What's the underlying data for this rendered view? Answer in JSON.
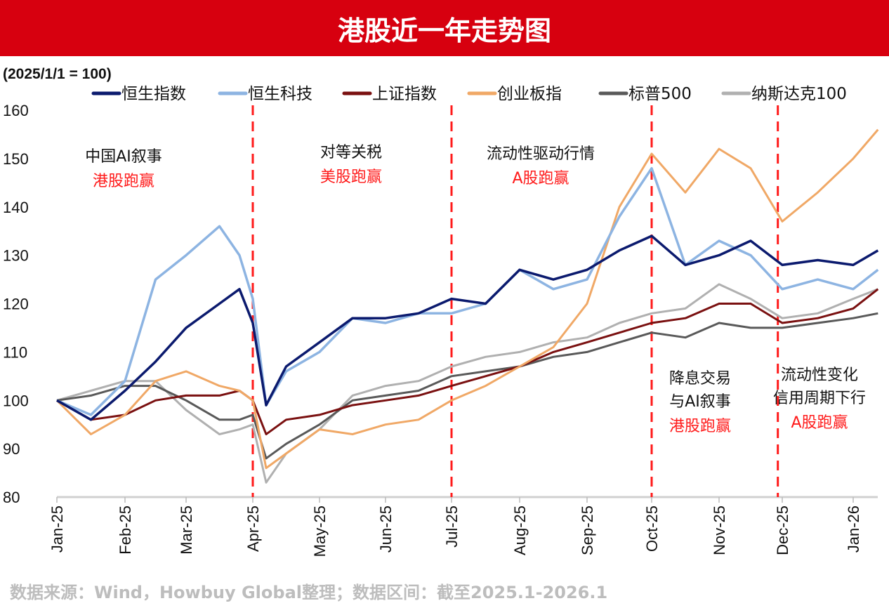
{
  "title": "港股近一年走势图",
  "footer": "数据来源：Wind，Howbuy Global整理；数据区间：截至2025.1-2026.1",
  "chart_data": {
    "type": "line",
    "title": "港股近一年走势图",
    "ylabel": "(2025/1/1 = 100)",
    "ylim": [
      80,
      160
    ],
    "yticks": [
      160,
      150,
      140,
      130,
      120,
      110,
      100,
      90,
      80
    ],
    "xtick_labels": [
      "Jan-25",
      "Feb-25",
      "Mar-25",
      "Apr-25",
      "May-25",
      "Jun-25",
      "Jul-25",
      "Aug-25",
      "Sep-25",
      "Oct-25",
      "Nov-25",
      "Dec-25",
      "Jan-26"
    ],
    "x_months": [
      0,
      0.5,
      1,
      1.5,
      2,
      2.5,
      2.8,
      3,
      3.2,
      3.5,
      4,
      4.5,
      5,
      5.5,
      6,
      6.5,
      7,
      7.5,
      8,
      8.5,
      9,
      9.5,
      10,
      10.5,
      11,
      11.5,
      12,
      12.35
    ],
    "legend_position": "top",
    "series": [
      {
        "name": "恒生指数",
        "color": "#0b1a6e",
        "values": [
          100,
          96,
          102,
          108,
          115,
          120,
          123,
          116,
          99,
          107,
          112,
          117,
          117,
          118,
          121,
          120,
          127,
          125,
          127,
          131,
          134,
          128,
          130,
          133,
          128,
          129,
          128,
          131
        ]
      },
      {
        "name": "恒生科技",
        "color": "#8db4e2",
        "values": [
          100,
          97,
          104,
          125,
          130,
          136,
          130,
          121,
          99,
          106,
          110,
          117,
          116,
          118,
          118,
          120,
          127,
          123,
          125,
          138,
          148,
          128,
          133,
          130,
          123,
          125,
          123,
          127
        ]
      },
      {
        "name": "上证指数",
        "color": "#7a1010",
        "values": [
          100,
          96,
          97,
          100,
          101,
          101,
          102,
          100,
          93,
          96,
          97,
          99,
          100,
          101,
          103,
          105,
          107,
          110,
          112,
          114,
          116,
          117,
          120,
          120,
          116,
          117,
          119,
          123
        ]
      },
      {
        "name": "创业板指",
        "color": "#f0a866",
        "values": [
          100,
          93,
          97,
          104,
          106,
          103,
          102,
          100,
          86,
          89,
          94,
          93,
          95,
          96,
          100,
          103,
          107,
          111,
          120,
          140,
          151,
          143,
          152,
          148,
          137,
          143,
          150,
          156
        ]
      },
      {
        "name": "标普500",
        "color": "#595959",
        "values": [
          100,
          101,
          103,
          103,
          100,
          96,
          96,
          97,
          88,
          91,
          95,
          100,
          101,
          102,
          105,
          106,
          107,
          109,
          110,
          112,
          114,
          113,
          116,
          115,
          115,
          116,
          117,
          118
        ]
      },
      {
        "name": "纳斯达克100",
        "color": "#b0b0b0",
        "values": [
          100,
          102,
          104,
          104,
          98,
          93,
          94,
          95,
          83,
          89,
          94,
          101,
          103,
          104,
          107,
          109,
          110,
          112,
          113,
          116,
          118,
          119,
          124,
          121,
          117,
          118,
          121,
          123
        ]
      }
    ],
    "period_dividers_months": [
      3.0,
      6.0,
      9.0,
      10.93
    ],
    "annotations": [
      {
        "lines": [
          "中国AI叙事"
        ],
        "highlight": "港股跑赢"
      },
      {
        "lines": [
          "对等关税"
        ],
        "highlight": "美股跑赢"
      },
      {
        "lines": [
          "流动性驱动行情"
        ],
        "highlight": "A股跑赢"
      },
      {
        "lines": [
          "降息交易",
          "与AI叙事"
        ],
        "highlight": "港股跑赢"
      },
      {
        "lines": [
          "流动性变化",
          "信用周期下行"
        ],
        "highlight": "A股跑赢"
      }
    ]
  }
}
